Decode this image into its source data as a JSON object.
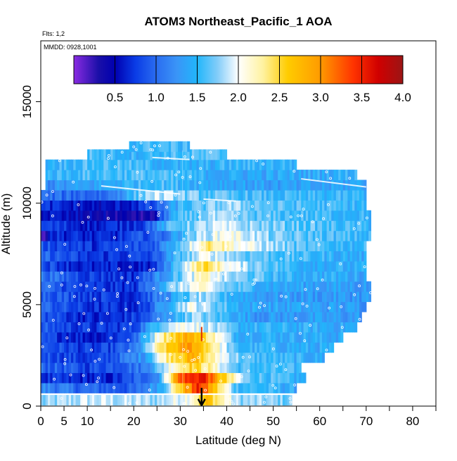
{
  "chart_data": {
    "type": "heatmap",
    "title": "ATOM3 Northeast_Pacific_1 AOA",
    "annotations": {
      "flights": "Flts: 1,2",
      "dates": "MMDD: 0928,1001"
    },
    "xlabel": "Latitude (deg N)",
    "ylabel": "Altitude (m)",
    "xlim": [
      0,
      85
    ],
    "ylim": [
      0,
      18000
    ],
    "x_ticks": [
      0,
      5,
      10,
      20,
      30,
      40,
      50,
      60,
      70,
      80
    ],
    "x_tick_labels": [
      "0",
      "5",
      "10",
      "20",
      "30",
      "40",
      "50",
      "60",
      "70",
      "80"
    ],
    "x_minor_ticks": [
      15,
      25,
      35,
      45,
      55,
      65,
      75,
      85
    ],
    "y_ticks": [
      0,
      5000,
      10000,
      15000
    ],
    "y_tick_labels": [
      "0",
      "5000",
      "10000",
      "15000"
    ],
    "colorbar": {
      "range": [
        0,
        4.0
      ],
      "tick_values": [
        0.5,
        1.0,
        1.5,
        2.0,
        2.5,
        3.0,
        3.5,
        4.0
      ],
      "tick_labels": [
        "0.5",
        "1.0",
        "1.5",
        "2.0",
        "2.5",
        "3.0",
        "3.5",
        "4.0"
      ],
      "stops": [
        {
          "v": 0.0,
          "c": "#8a2be2"
        },
        {
          "v": 0.3,
          "c": "#1a0fa8"
        },
        {
          "v": 0.5,
          "c": "#0000b0"
        },
        {
          "v": 0.75,
          "c": "#0a3ce6"
        },
        {
          "v": 1.0,
          "c": "#2a6cf0"
        },
        {
          "v": 1.25,
          "c": "#3a94f7"
        },
        {
          "v": 1.5,
          "c": "#21b6fb"
        },
        {
          "v": 1.75,
          "c": "#84cdf9"
        },
        {
          "v": 2.0,
          "c": "#ffffff"
        },
        {
          "v": 2.3,
          "c": "#fff2a0"
        },
        {
          "v": 2.6,
          "c": "#ffcc00"
        },
        {
          "v": 3.0,
          "c": "#ff9a00"
        },
        {
          "v": 3.4,
          "c": "#ff3300"
        },
        {
          "v": 3.7,
          "c": "#d00000"
        },
        {
          "v": 4.0,
          "c": "#9b1515"
        }
      ]
    },
    "bands": [
      {
        "alt": 300,
        "lat0": 0,
        "lat1": 54,
        "profile": [
          [
            0,
            1.7
          ],
          [
            10,
            1.9
          ],
          [
            25,
            1.8
          ],
          [
            32,
            2.1
          ],
          [
            36,
            2.7
          ],
          [
            42,
            1.8
          ],
          [
            54,
            1.7
          ]
        ]
      },
      {
        "alt": 900,
        "lat0": 0,
        "lat1": 55,
        "profile": [
          [
            0,
            1.2
          ],
          [
            8,
            1.0
          ],
          [
            20,
            0.9
          ],
          [
            26,
            1.5
          ],
          [
            30,
            2.6
          ],
          [
            34,
            3.5
          ],
          [
            38,
            2.5
          ],
          [
            42,
            1.6
          ],
          [
            55,
            1.4
          ]
        ]
      },
      {
        "alt": 1400,
        "lat0": 0,
        "lat1": 57,
        "profile": [
          [
            0,
            0.7
          ],
          [
            15,
            0.6
          ],
          [
            25,
            1.2
          ],
          [
            30,
            3.3
          ],
          [
            35,
            3.6
          ],
          [
            38,
            2.8
          ],
          [
            44,
            1.7
          ],
          [
            57,
            1.4
          ]
        ]
      },
      {
        "alt": 1900,
        "lat0": 0,
        "lat1": 56,
        "profile": [
          [
            0,
            1.0
          ],
          [
            10,
            0.8
          ],
          [
            22,
            1.1
          ],
          [
            28,
            2.1
          ],
          [
            32,
            2.6
          ],
          [
            36,
            2.3
          ],
          [
            42,
            1.6
          ],
          [
            56,
            1.5
          ]
        ]
      },
      {
        "alt": 2400,
        "lat0": 0,
        "lat1": 61,
        "profile": [
          [
            0,
            0.9
          ],
          [
            12,
            0.7
          ],
          [
            22,
            1.3
          ],
          [
            28,
            2.5
          ],
          [
            33,
            2.8
          ],
          [
            37,
            2.2
          ],
          [
            44,
            1.6
          ],
          [
            61,
            1.4
          ]
        ]
      },
      {
        "alt": 2900,
        "lat0": 0,
        "lat1": 63,
        "profile": [
          [
            0,
            0.9
          ],
          [
            12,
            0.7
          ],
          [
            20,
            1.0
          ],
          [
            26,
            2.4
          ],
          [
            32,
            3.0
          ],
          [
            36,
            2.5
          ],
          [
            42,
            1.5
          ],
          [
            63,
            1.4
          ]
        ]
      },
      {
        "alt": 3400,
        "lat0": 0,
        "lat1": 65,
        "profile": [
          [
            0,
            0.8
          ],
          [
            12,
            0.6
          ],
          [
            20,
            0.9
          ],
          [
            26,
            2.3
          ],
          [
            32,
            2.9
          ],
          [
            36,
            2.4
          ],
          [
            42,
            1.5
          ],
          [
            65,
            1.4
          ]
        ]
      },
      {
        "alt": 3900,
        "lat0": 0,
        "lat1": 68,
        "profile": [
          [
            0,
            0.9
          ],
          [
            12,
            0.7
          ],
          [
            20,
            0.8
          ],
          [
            26,
            1.8
          ],
          [
            31,
            2.1
          ],
          [
            36,
            1.9
          ],
          [
            42,
            1.5
          ],
          [
            68,
            1.4
          ]
        ]
      },
      {
        "alt": 4400,
        "lat0": 0,
        "lat1": 69,
        "profile": [
          [
            0,
            0.9
          ],
          [
            12,
            0.6
          ],
          [
            22,
            0.8
          ],
          [
            28,
            1.4
          ],
          [
            33,
            1.8
          ],
          [
            38,
            1.6
          ],
          [
            46,
            1.3
          ],
          [
            69,
            1.3
          ]
        ]
      },
      {
        "alt": 4900,
        "lat0": 0,
        "lat1": 70,
        "profile": [
          [
            0,
            1.0
          ],
          [
            10,
            0.7
          ],
          [
            22,
            0.7
          ],
          [
            28,
            1.6
          ],
          [
            32,
            2.0
          ],
          [
            36,
            1.8
          ],
          [
            44,
            1.4
          ],
          [
            70,
            1.3
          ]
        ]
      },
      {
        "alt": 5400,
        "lat0": 0,
        "lat1": 71,
        "profile": [
          [
            0,
            1.0
          ],
          [
            10,
            0.8
          ],
          [
            20,
            0.7
          ],
          [
            28,
            1.3
          ],
          [
            34,
            1.8
          ],
          [
            40,
            1.5
          ],
          [
            50,
            1.3
          ],
          [
            71,
            1.3
          ]
        ]
      },
      {
        "alt": 5900,
        "lat0": 0,
        "lat1": 71,
        "profile": [
          [
            0,
            1.0
          ],
          [
            10,
            0.7
          ],
          [
            20,
            0.7
          ],
          [
            28,
            1.7
          ],
          [
            34,
            2.1
          ],
          [
            40,
            1.7
          ],
          [
            50,
            1.4
          ],
          [
            71,
            1.3
          ]
        ]
      },
      {
        "alt": 6400,
        "lat0": 0,
        "lat1": 70,
        "profile": [
          [
            0,
            1.1
          ],
          [
            10,
            0.8
          ],
          [
            20,
            0.7
          ],
          [
            28,
            1.5
          ],
          [
            35,
            2.2
          ],
          [
            40,
            1.8
          ],
          [
            52,
            1.5
          ],
          [
            70,
            1.4
          ]
        ]
      },
      {
        "alt": 6900,
        "lat0": 0,
        "lat1": 70,
        "profile": [
          [
            0,
            0.9
          ],
          [
            10,
            0.6
          ],
          [
            24,
            0.6
          ],
          [
            30,
            1.8
          ],
          [
            35,
            2.5
          ],
          [
            42,
            1.9
          ],
          [
            55,
            1.5
          ],
          [
            70,
            1.4
          ]
        ]
      },
      {
        "alt": 7400,
        "lat0": 0,
        "lat1": 70,
        "profile": [
          [
            0,
            1.0
          ],
          [
            10,
            0.7
          ],
          [
            24,
            0.8
          ],
          [
            30,
            1.6
          ],
          [
            36,
            2.0
          ],
          [
            44,
            1.7
          ],
          [
            60,
            1.5
          ],
          [
            70,
            1.4
          ]
        ]
      },
      {
        "alt": 7900,
        "lat0": 0,
        "lat1": 70,
        "profile": [
          [
            0,
            0.9
          ],
          [
            12,
            0.7
          ],
          [
            24,
            0.9
          ],
          [
            30,
            1.7
          ],
          [
            36,
            2.4
          ],
          [
            44,
            2.0
          ],
          [
            56,
            1.6
          ],
          [
            70,
            1.5
          ]
        ]
      },
      {
        "alt": 8400,
        "lat0": 0,
        "lat1": 71,
        "profile": [
          [
            0,
            0.1
          ],
          [
            2,
            0.7
          ],
          [
            14,
            0.6
          ],
          [
            26,
            1.0
          ],
          [
            32,
            1.7
          ],
          [
            40,
            2.1
          ],
          [
            50,
            1.7
          ],
          [
            71,
            1.5
          ]
        ]
      },
      {
        "alt": 8900,
        "lat0": 0,
        "lat1": 71,
        "profile": [
          [
            0,
            0.8
          ],
          [
            12,
            0.6
          ],
          [
            22,
            0.8
          ],
          [
            28,
            1.6
          ],
          [
            38,
            1.9
          ],
          [
            50,
            1.7
          ],
          [
            71,
            1.5
          ]
        ]
      },
      {
        "alt": 9400,
        "lat0": 0,
        "lat1": 71,
        "profile": [
          [
            0,
            0.6
          ],
          [
            14,
            0.4
          ],
          [
            24,
            0.3
          ],
          [
            28,
            1.4
          ],
          [
            36,
            1.8
          ],
          [
            48,
            1.6
          ],
          [
            71,
            1.5
          ]
        ]
      },
      {
        "alt": 9900,
        "lat0": 0,
        "lat1": 70,
        "profile": [
          [
            0,
            0.7
          ],
          [
            14,
            0.5
          ],
          [
            24,
            0.8
          ],
          [
            30,
            1.5
          ],
          [
            40,
            1.8
          ],
          [
            52,
            1.6
          ],
          [
            70,
            1.5
          ]
        ]
      },
      {
        "alt": 10400,
        "lat0": 0,
        "lat1": 70,
        "profile": [
          [
            0,
            1.0
          ],
          [
            14,
            1.0
          ],
          [
            24,
            1.9
          ],
          [
            32,
            1.7
          ],
          [
            40,
            1.6
          ],
          [
            55,
            1.5
          ],
          [
            70,
            1.5
          ]
        ]
      },
      {
        "alt": 10900,
        "lat0": 1,
        "lat1": 70,
        "profile": [
          [
            1,
            1.2
          ],
          [
            14,
            1.4
          ],
          [
            24,
            1.6
          ],
          [
            32,
            1.5
          ],
          [
            40,
            1.4
          ],
          [
            55,
            1.3
          ],
          [
            70,
            1.4
          ]
        ]
      },
      {
        "alt": 11400,
        "lat0": 1,
        "lat1": 68,
        "profile": [
          [
            1,
            1.5
          ],
          [
            14,
            1.6
          ],
          [
            24,
            1.6
          ],
          [
            32,
            1.5
          ],
          [
            40,
            1.4
          ],
          [
            55,
            1.4
          ],
          [
            68,
            1.5
          ]
        ]
      },
      {
        "alt": 11900,
        "lat0": 1,
        "lat1": 55,
        "profile": [
          [
            1,
            1.5
          ],
          [
            14,
            1.6
          ],
          [
            24,
            1.5
          ],
          [
            32,
            1.4
          ],
          [
            40,
            1.5
          ],
          [
            55,
            1.5
          ]
        ]
      },
      {
        "alt": 12400,
        "lat0": 10,
        "lat1": 40,
        "profile": [
          [
            10,
            1.6
          ],
          [
            20,
            1.5
          ],
          [
            30,
            1.6
          ],
          [
            40,
            1.6
          ]
        ]
      },
      {
        "alt": 12800,
        "lat0": 19,
        "lat1": 32,
        "profile": [
          [
            19,
            1.5
          ],
          [
            26,
            1.6
          ],
          [
            32,
            1.5
          ]
        ]
      }
    ],
    "column_breaks": [
      {
        "lat": 30.5,
        "alt0": 0,
        "alt1": 12600
      }
    ]
  }
}
